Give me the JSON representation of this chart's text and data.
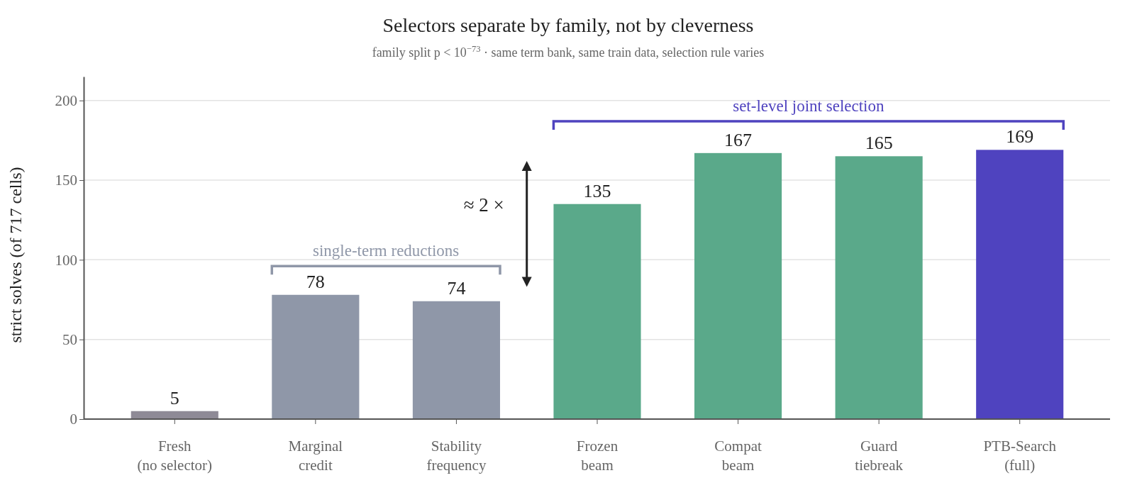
{
  "chart_data": {
    "type": "bar",
    "title": "Selectors separate by family, not by cleverness",
    "subtitle": "family split p < 10$^{−73}$  ·  same term bank, same train data, selection rule varies",
    "ylabel": "strict solves (of 717 cells)",
    "categories": [
      "Fresh\n(no selector)",
      "Marginal\ncredit",
      "Stability\nfrequency",
      "Frozen\nbeam",
      "Compat\nbeam",
      "Guard\ntiebreak",
      "PTB-Search\n(full)"
    ],
    "values": [
      5,
      78,
      74,
      135,
      167,
      165,
      169
    ],
    "colors": [
      "#8e8a96",
      "#8f97a8",
      "#8f97a8",
      "#5aa98a",
      "#5aa98a",
      "#5aa98a",
      "#4f43bf"
    ],
    "ylim": [
      0,
      215
    ],
    "yticks": [
      0,
      50,
      100,
      150,
      200
    ],
    "grid": "y",
    "data_labels": true,
    "annotations": [
      "single-term reductions",
      "set-level joint selection",
      "≈ 2 ×"
    ]
  }
}
